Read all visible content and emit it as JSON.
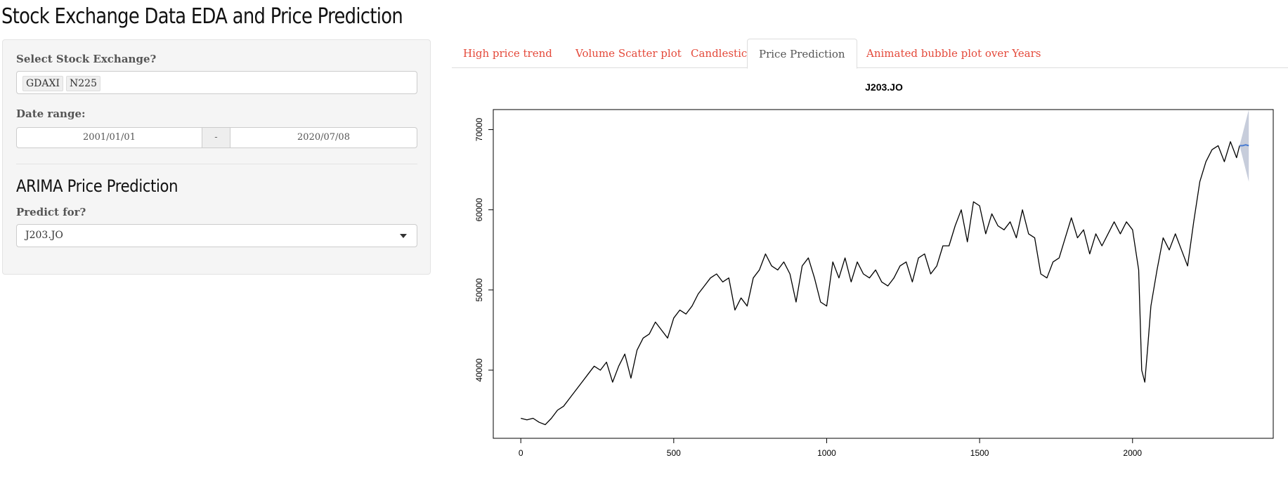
{
  "app": {
    "title": "Stock Exchange Data EDA and Price Prediction"
  },
  "sidebar": {
    "exchange_label": "Select Stock Exchange?",
    "exchange_selected": [
      "GDAXI",
      "N225"
    ],
    "date_label": "Date range:",
    "date_start": "2001/01/01",
    "date_separator": "-",
    "date_end": "2020/07/08",
    "section_title": "ARIMA Price Prediction",
    "predict_label": "Predict for?",
    "predict_value": "J203.JO"
  },
  "tabs": [
    {
      "label": "High price trend",
      "active": false
    },
    {
      "label": "Volume Scatter plot",
      "active": false
    },
    {
      "label": "Candlestick",
      "active": false
    },
    {
      "label": "Price Prediction",
      "active": true
    },
    {
      "label": "Animated bubble plot over Years",
      "active": false
    }
  ],
  "colors": {
    "tab_link": "#e4493a",
    "forecast_band": "#c7cddb",
    "forecast_line": "#4a7cd1"
  },
  "chart_data": {
    "type": "line",
    "title": "J203.JO",
    "xlabel": "",
    "ylabel": "",
    "xlim": [
      -90,
      2460
    ],
    "ylim": [
      31500,
      72500
    ],
    "x_ticks": [
      0,
      500,
      1000,
      1500,
      2000
    ],
    "x_tick_labels": [
      "0",
      "500",
      "1000",
      "1500",
      "2000"
    ],
    "y_ticks": [
      40000,
      50000,
      60000,
      70000
    ],
    "y_tick_labels": [
      "40000",
      "50000",
      "60000",
      "70000"
    ],
    "series": [
      {
        "x": [
          0,
          20,
          40,
          60,
          80,
          100,
          120,
          140,
          160,
          180,
          200,
          220,
          240,
          260,
          280,
          300,
          320,
          340,
          360,
          380,
          400,
          420,
          440,
          460,
          480,
          500,
          520,
          540,
          560,
          580,
          600,
          620,
          640,
          660,
          680,
          700,
          720,
          740,
          760,
          780,
          800,
          820,
          840,
          860,
          880,
          900,
          920,
          940,
          960,
          980,
          1000,
          1020,
          1040,
          1060,
          1080,
          1100,
          1120,
          1140,
          1160,
          1180,
          1200,
          1220,
          1240,
          1260,
          1280,
          1300,
          1320,
          1340,
          1360,
          1380,
          1400,
          1420,
          1440,
          1460,
          1480,
          1500,
          1520,
          1540,
          1560,
          1580,
          1600,
          1620,
          1640,
          1660,
          1680,
          1700,
          1720,
          1740,
          1760,
          1780,
          1800,
          1820,
          1840,
          1860,
          1880,
          1900,
          1920,
          1940,
          1960,
          1980,
          2000,
          2020,
          2030,
          2040,
          2050,
          2060,
          2080,
          2100,
          2120,
          2140,
          2160,
          2180,
          2200,
          2220,
          2240,
          2260,
          2280,
          2300,
          2320,
          2340,
          2350
        ],
        "y": [
          34000,
          33800,
          34000,
          33500,
          33200,
          34000,
          35000,
          35500,
          36500,
          37500,
          38500,
          39500,
          40500,
          40000,
          41000,
          38500,
          40500,
          42000,
          39000,
          42500,
          44000,
          44500,
          46000,
          45000,
          44000,
          46500,
          47500,
          47000,
          48000,
          49500,
          50500,
          51500,
          52000,
          51000,
          51500,
          47500,
          49000,
          48000,
          51500,
          52500,
          54500,
          53000,
          52500,
          53500,
          52000,
          48500,
          53000,
          54000,
          51500,
          48500,
          48000,
          53500,
          51500,
          54000,
          51000,
          53500,
          52000,
          51500,
          52500,
          51000,
          50500,
          51500,
          53000,
          53500,
          51000,
          54000,
          54500,
          52000,
          53000,
          55500,
          55500,
          58000,
          60000,
          56000,
          61000,
          60500,
          57000,
          59500,
          58000,
          57500,
          58500,
          56500,
          60000,
          57000,
          56500,
          52000,
          51500,
          53500,
          54000,
          56500,
          59000,
          56500,
          57500,
          54500,
          57000,
          55500,
          57000,
          58500,
          57000,
          58500,
          57500,
          52500,
          40000,
          38500,
          43000,
          48000,
          52500,
          56500,
          55000,
          57000,
          55000,
          53000,
          58500,
          63500,
          66000,
          67500,
          68000,
          66000,
          68500,
          66500,
          68000
        ]
      },
      {
        "name": "",
        "x": [
          2350,
          2360,
          2370,
          2380
        ],
        "y": [
          68000,
          68000,
          68100,
          68000
        ],
        "lower": [
          68000,
          66500,
          65000,
          63500
        ],
        "upper": [
          68000,
          69500,
          71000,
          72500
        ]
      }
    ]
  }
}
